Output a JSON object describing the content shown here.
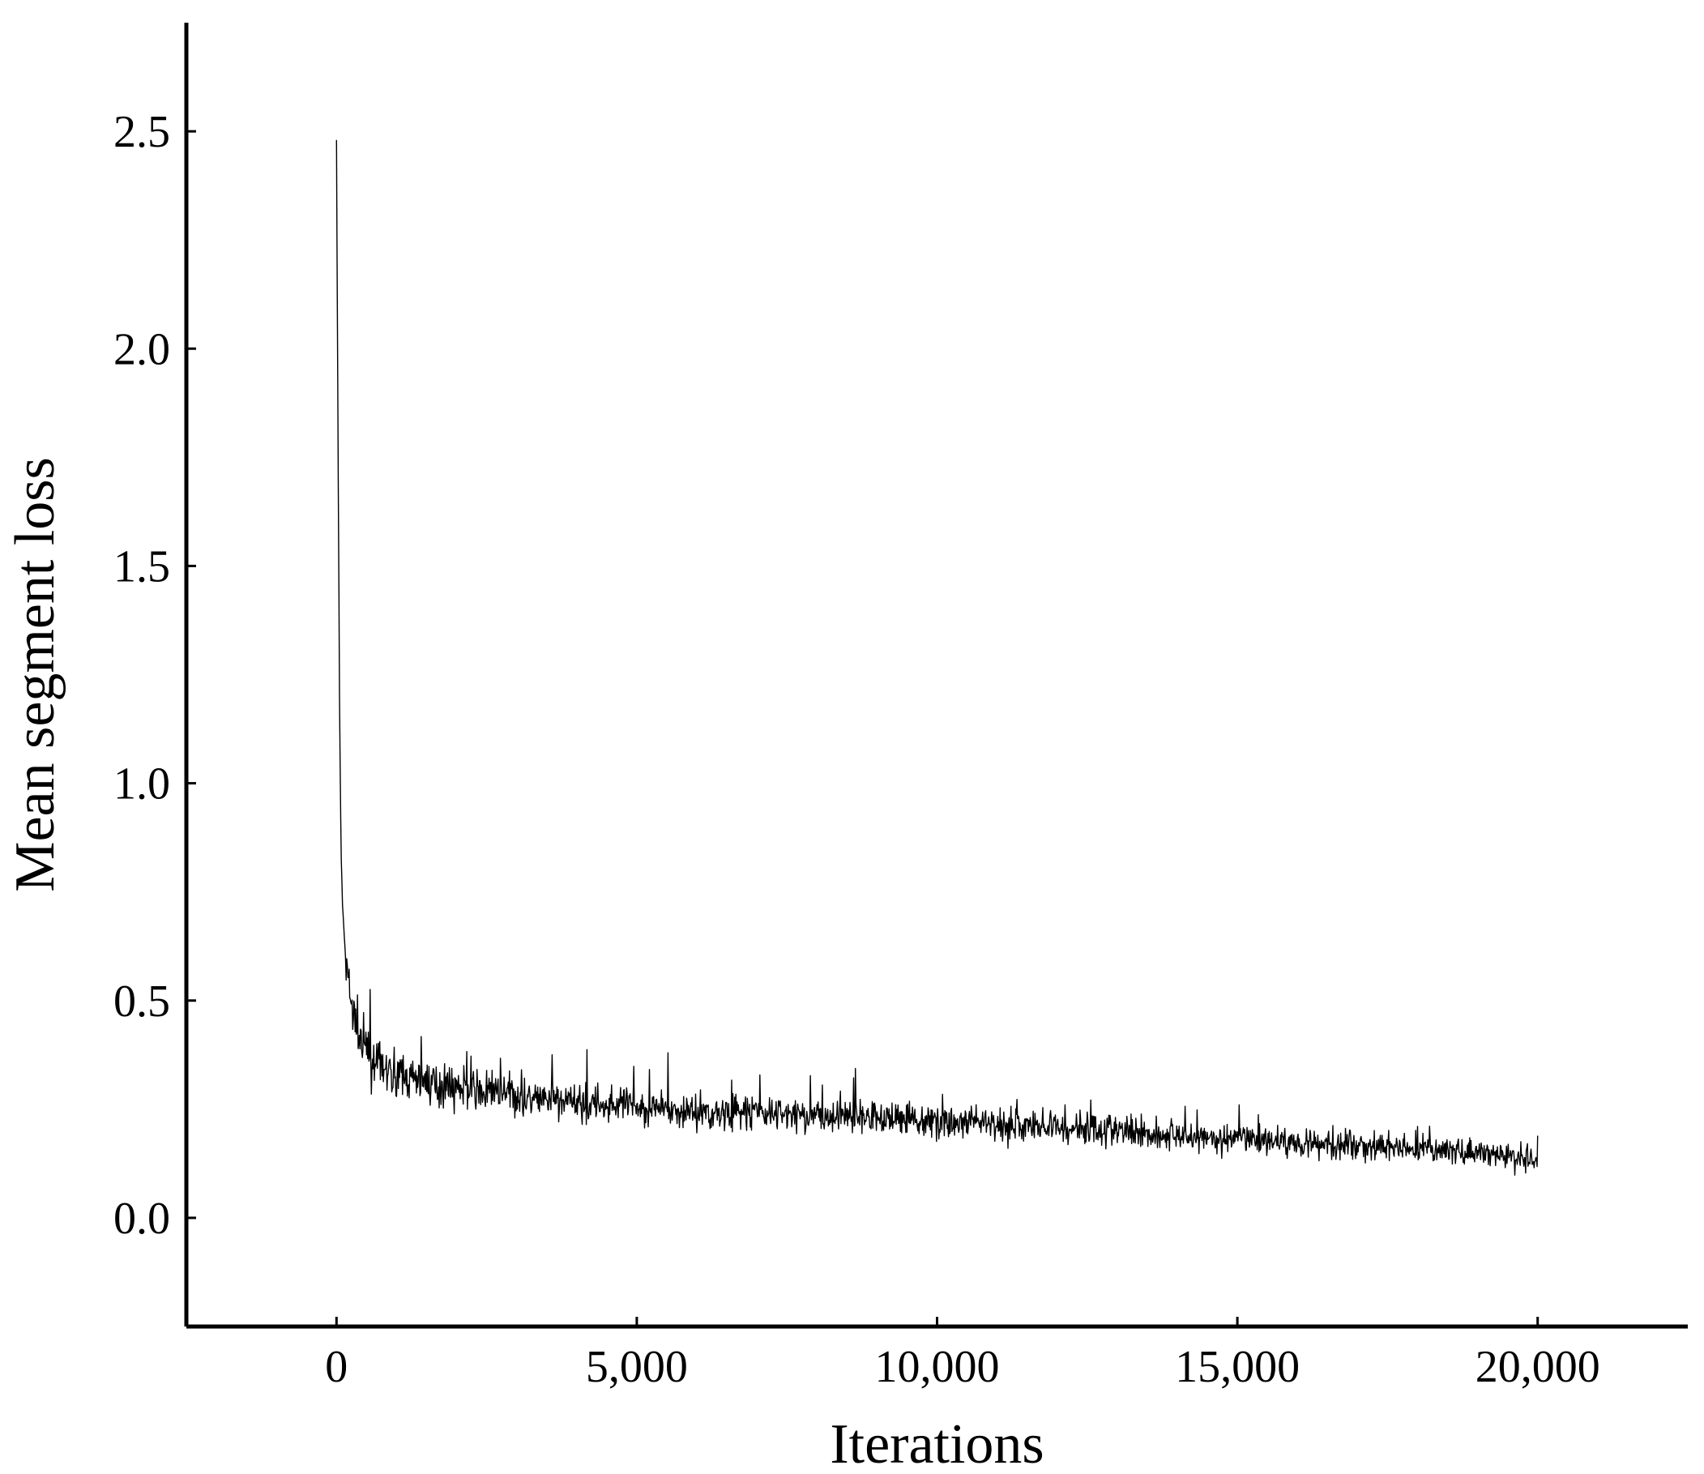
{
  "chart_data": {
    "type": "line",
    "title": "",
    "xlabel": "Iterations",
    "ylabel": "Mean segment loss",
    "xlim": [
      -2500,
      22500
    ],
    "ylim": [
      -0.25,
      2.75
    ],
    "x_ticks": [
      {
        "value": 0,
        "label": "0"
      },
      {
        "value": 5000,
        "label": "5,000"
      },
      {
        "value": 10000,
        "label": "10,000"
      },
      {
        "value": 15000,
        "label": "15,000"
      },
      {
        "value": 20000,
        "label": "20,000"
      }
    ],
    "y_ticks": [
      {
        "value": 0.0,
        "label": "0.0"
      },
      {
        "value": 0.5,
        "label": "0.5"
      },
      {
        "value": 1.0,
        "label": "1.0"
      },
      {
        "value": 1.5,
        "label": "1.5"
      },
      {
        "value": 2.0,
        "label": "2.0"
      },
      {
        "value": 2.5,
        "label": "2.5"
      }
    ],
    "grid": false,
    "legend": "none",
    "series": [
      {
        "color": "#000000",
        "x": [
          0,
          25,
          50,
          75,
          100,
          150,
          200,
          250,
          300,
          350,
          400,
          500,
          600,
          700,
          800,
          1000,
          1200,
          1500,
          2000,
          2500,
          3000,
          3500,
          4000,
          5000,
          6000,
          7000,
          8000,
          9000,
          9500,
          10000,
          11000,
          12000,
          13000,
          14000,
          15000,
          16000,
          17000,
          18000,
          19000,
          20000
        ],
        "y": [
          2.48,
          1.8,
          1.2,
          0.85,
          0.72,
          0.6,
          0.53,
          0.49,
          0.46,
          0.43,
          0.41,
          0.38,
          0.36,
          0.35,
          0.34,
          0.33,
          0.32,
          0.31,
          0.3,
          0.29,
          0.28,
          0.27,
          0.265,
          0.255,
          0.245,
          0.24,
          0.235,
          0.23,
          0.23,
          0.22,
          0.215,
          0.21,
          0.2,
          0.19,
          0.18,
          0.175,
          0.165,
          0.16,
          0.15,
          0.13
        ]
      }
    ]
  }
}
